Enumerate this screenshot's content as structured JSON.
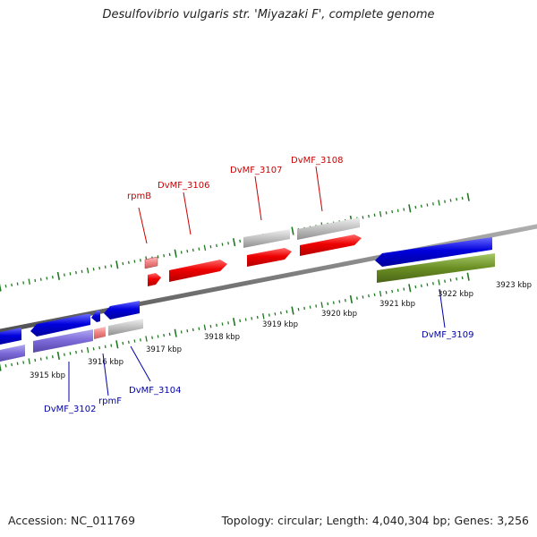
{
  "title": "Desulfovibrio vulgaris str. 'Miyazaki F', complete genome",
  "accession": "Accession: NC_011769",
  "summary": "Topology: circular; Length: 4,040,304 bp; Genes: 3,256",
  "colors": {
    "forward_gene": "#ee0000",
    "forward_rna": "#f08080",
    "reverse_gene": "#0000dd",
    "reverse_pseudo": "#7b68d8",
    "reverse_other": "#6b8e23",
    "other_feature": "#c0c0c0",
    "tick": "#1f7a1f",
    "backbone": "#7a7a7a",
    "forward_label": "#cc0000",
    "reverse_label": "#0000aa"
  },
  "axis_labels": [
    "3915 kbp",
    "3916 kbp",
    "3917 kbp",
    "3918 kbp",
    "3919 kbp",
    "3920 kbp",
    "3921 kbp",
    "3922 kbp",
    "3923 kbp"
  ],
  "forward_labels": [
    "rpmB",
    "DvMF_3106",
    "DvMF_3107",
    "DvMF_3108"
  ],
  "reverse_labels": [
    "DvMF_3102",
    "rpmF",
    "DvMF_3104",
    "DvMF_3109"
  ]
}
